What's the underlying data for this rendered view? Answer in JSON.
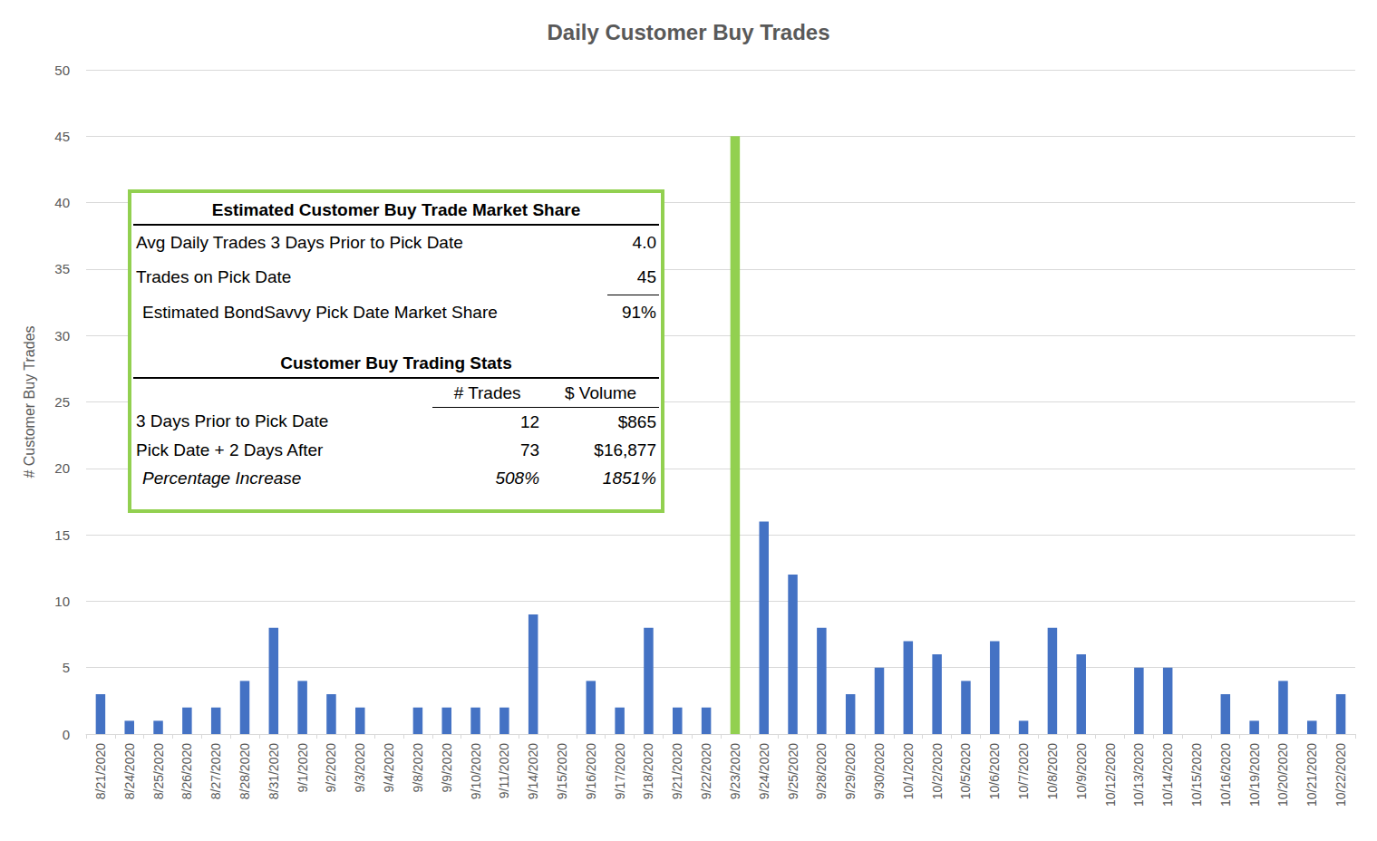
{
  "chart_data": {
    "type": "bar",
    "title": "Daily Customer Buy Trades",
    "y_label": "# Customer Buy Trades",
    "categories": [
      "8/21/2020",
      "8/24/2020",
      "8/25/2020",
      "8/26/2020",
      "8/27/2020",
      "8/28/2020",
      "8/31/2020",
      "9/1/2020",
      "9/2/2020",
      "9/3/2020",
      "9/4/2020",
      "9/8/2020",
      "9/9/2020",
      "9/10/2020",
      "9/11/2020",
      "9/14/2020",
      "9/15/2020",
      "9/16/2020",
      "9/17/2020",
      "9/18/2020",
      "9/21/2020",
      "9/22/2020",
      "9/23/2020",
      "9/24/2020",
      "9/25/2020",
      "9/28/2020",
      "9/29/2020",
      "9/30/2020",
      "10/1/2020",
      "10/2/2020",
      "10/5/2020",
      "10/6/2020",
      "10/7/2020",
      "10/8/2020",
      "10/9/2020",
      "10/12/2020",
      "10/13/2020",
      "10/14/2020",
      "10/15/2020",
      "10/16/2020",
      "10/19/2020",
      "10/20/2020",
      "10/21/2020",
      "10/22/2020"
    ],
    "values": [
      3,
      1,
      1,
      2,
      2,
      4,
      8,
      4,
      3,
      2,
      0,
      2,
      2,
      2,
      2,
      9,
      0,
      4,
      2,
      8,
      2,
      2,
      45,
      16,
      12,
      8,
      3,
      5,
      7,
      6,
      4,
      7,
      1,
      8,
      6,
      0,
      5,
      5,
      0,
      3,
      1,
      4,
      1,
      3
    ],
    "colors": [
      "#4472c4",
      "#4472c4",
      "#4472c4",
      "#4472c4",
      "#4472c4",
      "#4472c4",
      "#4472c4",
      "#4472c4",
      "#4472c4",
      "#4472c4",
      "#4472c4",
      "#4472c4",
      "#4472c4",
      "#4472c4",
      "#4472c4",
      "#4472c4",
      "#4472c4",
      "#4472c4",
      "#4472c4",
      "#4472c4",
      "#4472c4",
      "#4472c4",
      "#92d050",
      "#4472c4",
      "#4472c4",
      "#4472c4",
      "#4472c4",
      "#4472c4",
      "#4472c4",
      "#4472c4",
      "#4472c4",
      "#4472c4",
      "#4472c4",
      "#4472c4",
      "#4472c4",
      "#4472c4",
      "#4472c4",
      "#4472c4",
      "#4472c4",
      "#4472c4",
      "#4472c4",
      "#4472c4",
      "#4472c4",
      "#4472c4"
    ],
    "ylim": [
      0,
      50
    ],
    "yticks": [
      0,
      5,
      10,
      15,
      20,
      25,
      30,
      35,
      40,
      45,
      50
    ],
    "grid": true,
    "annotations": {
      "market_share": {
        "title": "Estimated Customer Buy Trade Market Share",
        "rows": [
          [
            "Avg Daily Trades 3 Days Prior to Pick Date",
            "4.0"
          ],
          [
            "Trades on Pick Date",
            "45"
          ],
          [
            "Estimated BondSavvy Pick Date Market Share",
            "91%"
          ]
        ]
      },
      "trading_stats": {
        "title": "Customer Buy Trading Stats",
        "columns": [
          "# Trades",
          "$ Volume"
        ],
        "rows": [
          [
            "3 Days Prior to Pick Date",
            "12",
            "$865"
          ],
          [
            "Pick Date + 2 Days After",
            "73",
            "$16,877"
          ],
          [
            "Percentage Increase",
            "508%",
            "1851%"
          ]
        ]
      }
    }
  }
}
